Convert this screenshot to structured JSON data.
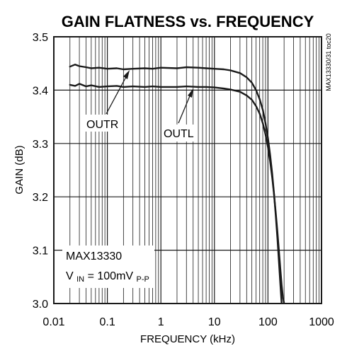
{
  "chart_data": {
    "type": "line",
    "title": "GAIN FLATNESS vs. FREQUENCY",
    "xlabel": "FREQUENCY (kHz)",
    "ylabel": "GAIN (dB)",
    "x_scale": "log",
    "xlim": [
      0.01,
      1000
    ],
    "ylim": [
      3.0,
      3.5
    ],
    "x_ticks": [
      "0.01",
      "0.1",
      "1",
      "10",
      "100",
      "1000"
    ],
    "y_ticks": [
      "3.0",
      "3.1",
      "3.2",
      "3.3",
      "3.4",
      "3.5"
    ],
    "grid": true,
    "side_label": "MAX13330/31 toc20",
    "series": [
      {
        "name": "OUTR",
        "x": [
          0.02,
          0.025,
          0.03,
          0.04,
          0.05,
          0.07,
          0.1,
          0.15,
          0.2,
          0.3,
          0.5,
          0.7,
          1,
          2,
          3,
          5,
          7,
          10,
          15,
          20,
          30,
          40,
          50,
          60,
          70,
          80,
          90,
          100,
          110,
          120,
          130,
          140,
          150,
          160,
          170,
          180
        ],
        "y": [
          3.444,
          3.448,
          3.445,
          3.443,
          3.441,
          3.442,
          3.44,
          3.441,
          3.439,
          3.44,
          3.441,
          3.44,
          3.442,
          3.441,
          3.443,
          3.442,
          3.441,
          3.44,
          3.439,
          3.437,
          3.432,
          3.424,
          3.414,
          3.4,
          3.383,
          3.363,
          3.338,
          3.31,
          3.278,
          3.243,
          3.205,
          3.165,
          3.123,
          3.08,
          3.038,
          3.0
        ]
      },
      {
        "name": "OUTL",
        "x": [
          0.02,
          0.025,
          0.03,
          0.04,
          0.05,
          0.07,
          0.1,
          0.15,
          0.2,
          0.3,
          0.5,
          0.7,
          1,
          2,
          3,
          5,
          7,
          10,
          15,
          20,
          30,
          40,
          50,
          60,
          70,
          80,
          90,
          100,
          110,
          120,
          130,
          140,
          150,
          160,
          170,
          180,
          190,
          200
        ],
        "y": [
          3.41,
          3.408,
          3.412,
          3.407,
          3.409,
          3.406,
          3.407,
          3.408,
          3.406,
          3.407,
          3.406,
          3.407,
          3.406,
          3.406,
          3.407,
          3.406,
          3.406,
          3.405,
          3.403,
          3.401,
          3.397,
          3.39,
          3.382,
          3.37,
          3.356,
          3.338,
          3.317,
          3.293,
          3.266,
          3.236,
          3.204,
          3.17,
          3.135,
          3.1,
          3.066,
          3.035,
          3.012,
          3.0
        ]
      }
    ],
    "annotations": [
      "OUTR",
      "OUTL",
      "MAX13330"
    ],
    "vin_label": {
      "prefix": "V",
      "prefix_sub": "IN",
      "middle": " = 100mV",
      "suffix_sub": "P-P"
    }
  }
}
